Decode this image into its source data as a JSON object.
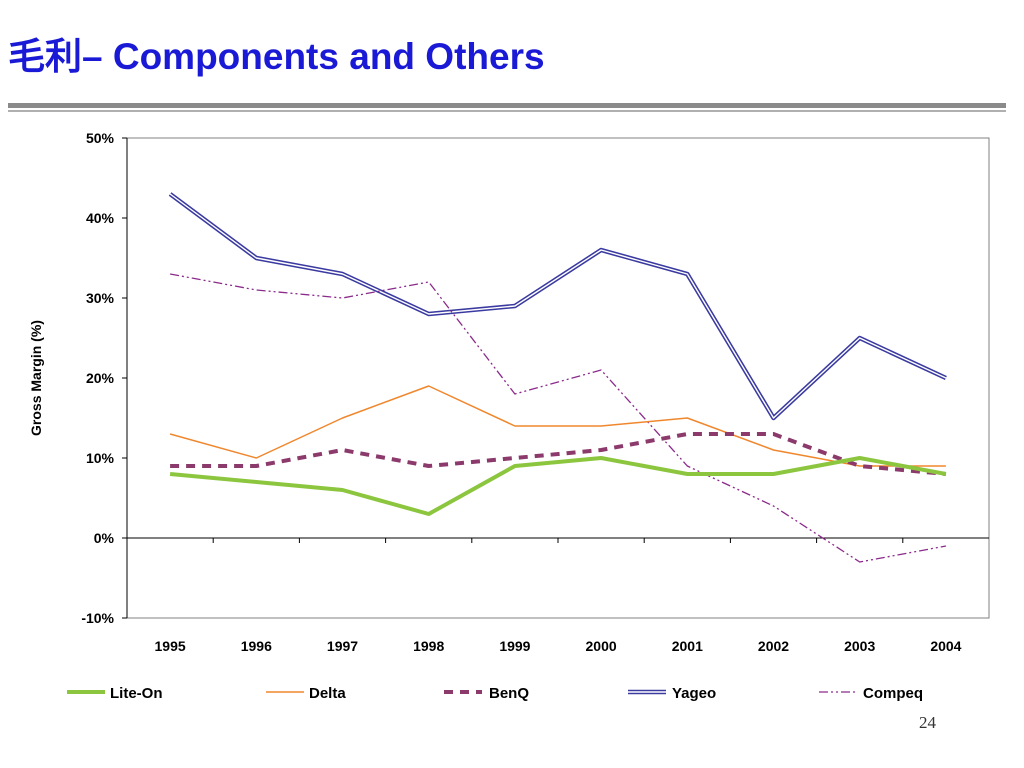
{
  "slide": {
    "title": "毛利– Components and Others",
    "page_number": "24"
  },
  "colors": {
    "title": "#1a1ad6",
    "Lite-On": "#8cc63f",
    "Delta": "#f0872d",
    "BenQ": "#8b3a6b",
    "Yageo": "#3a3aa0",
    "Compeq": "#8b2a8b"
  },
  "chart_data": {
    "type": "line",
    "title": "",
    "xlabel": "",
    "ylabel": "Gross Margin (%)",
    "categories": [
      "1995",
      "1996",
      "1997",
      "1998",
      "1999",
      "2000",
      "2001",
      "2002",
      "2003",
      "2004"
    ],
    "ylim": [
      -10,
      50
    ],
    "yticks": [
      -10,
      0,
      10,
      20,
      30,
      40,
      50
    ],
    "ytick_labels": [
      "-10%",
      "0%",
      "10%",
      "20%",
      "30%",
      "40%",
      "50%"
    ],
    "grid": false,
    "legend_position": "bottom",
    "series": [
      {
        "name": "Lite-On",
        "style": "thick-solid",
        "values": [
          8,
          7,
          6,
          3,
          9,
          10,
          8,
          8,
          10,
          8
        ]
      },
      {
        "name": "Delta",
        "style": "thin-solid",
        "values": [
          13,
          10,
          15,
          19,
          14,
          14,
          15,
          11,
          9,
          9
        ]
      },
      {
        "name": "BenQ",
        "style": "thick-dashed",
        "values": [
          9,
          9,
          11,
          9,
          10,
          11,
          13,
          13,
          9,
          8
        ]
      },
      {
        "name": "Yageo",
        "style": "double-line",
        "values": [
          43,
          35,
          33,
          28,
          29,
          36,
          33,
          15,
          25,
          20
        ]
      },
      {
        "name": "Compeq",
        "style": "dash-dot-dot",
        "values": [
          33,
          31,
          30,
          32,
          18,
          21,
          9,
          4,
          -3,
          -1
        ]
      }
    ]
  }
}
